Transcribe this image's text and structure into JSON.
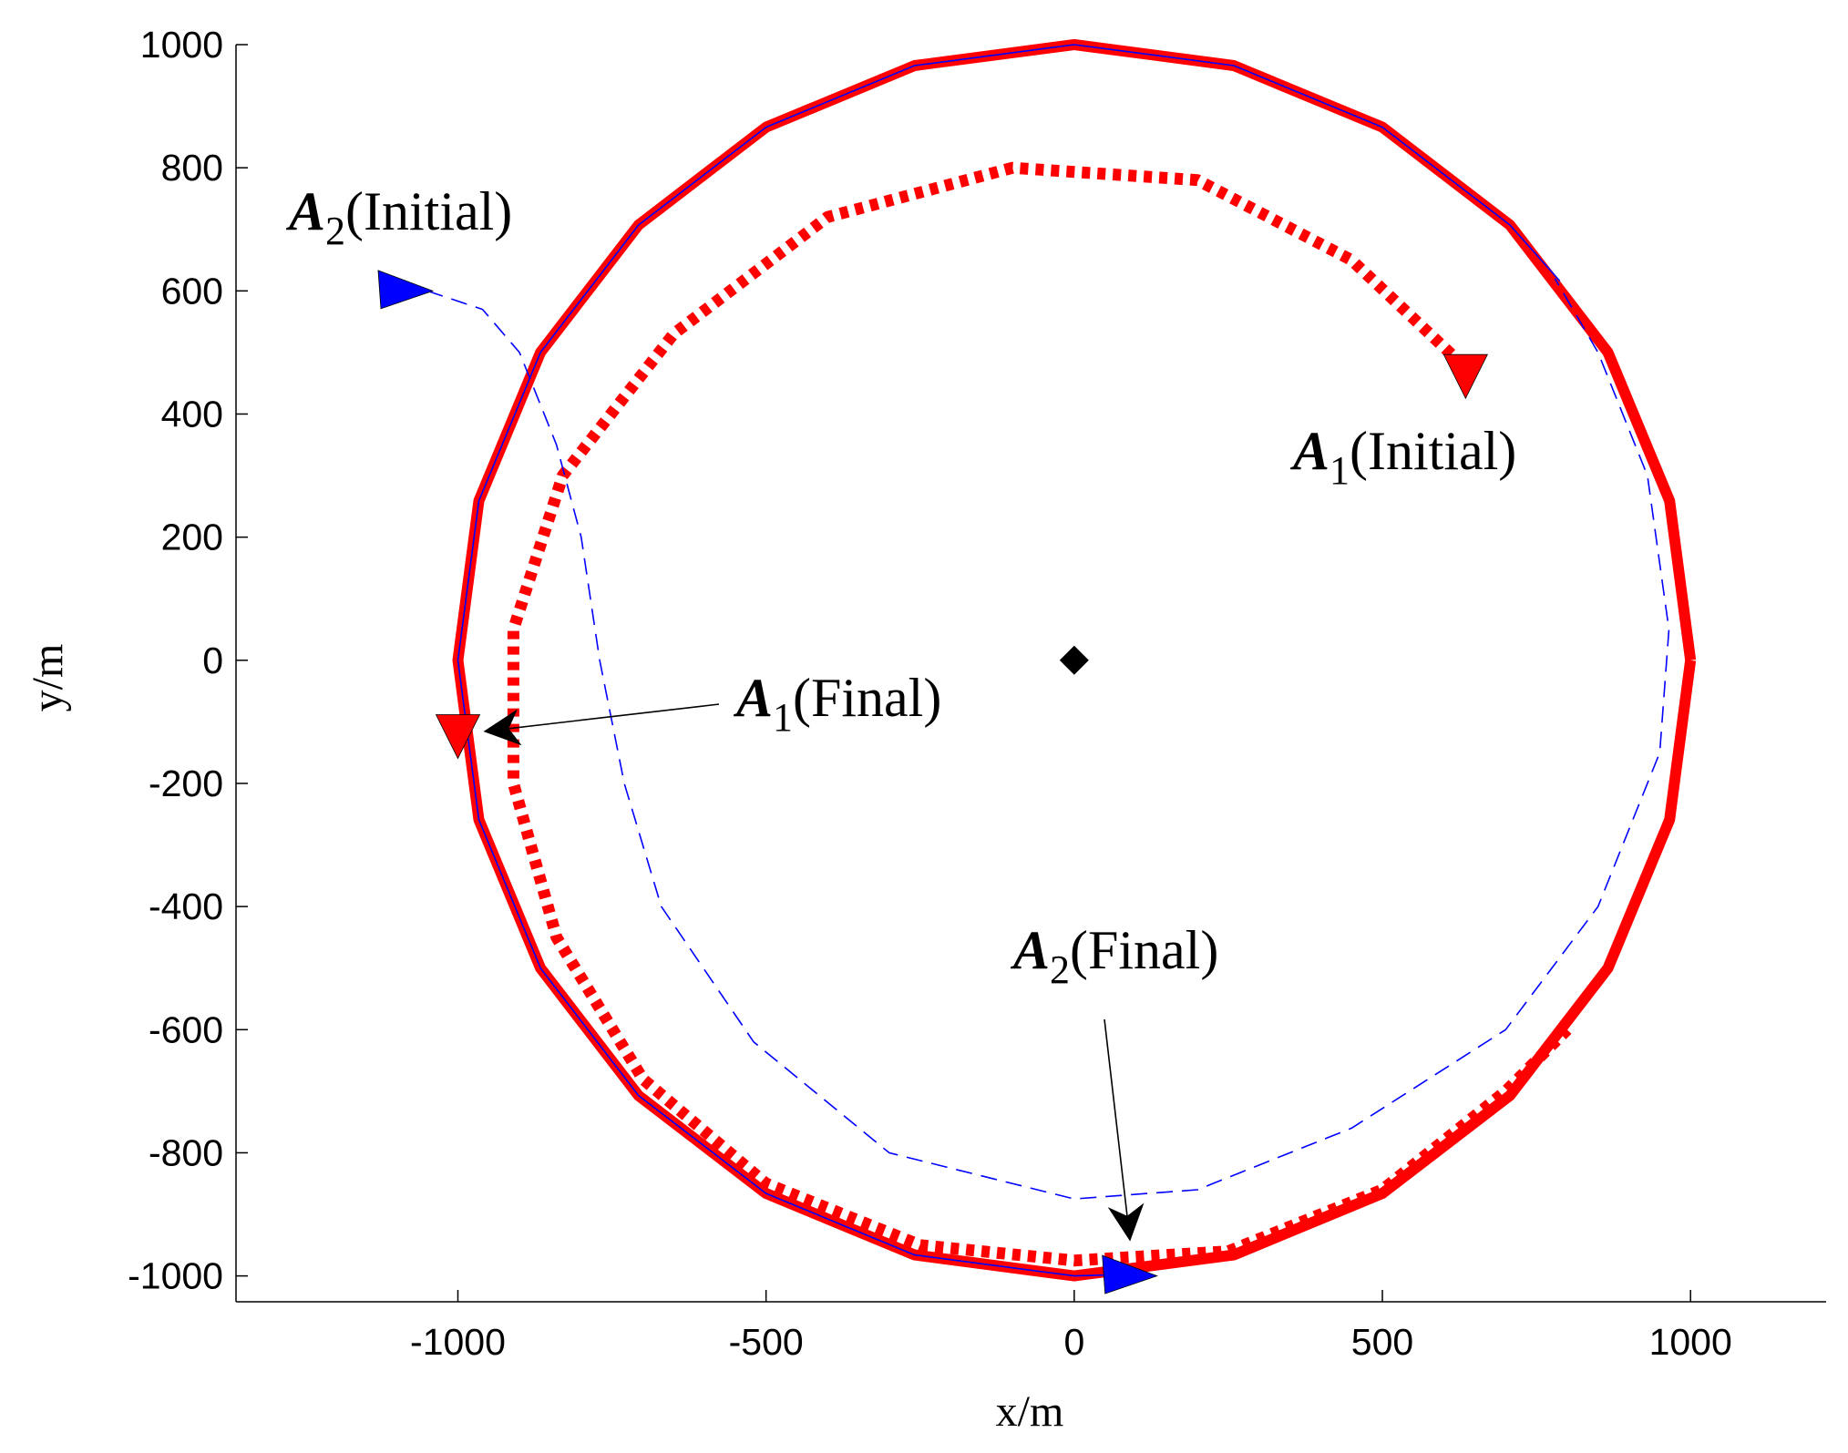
{
  "chart_data": {
    "type": "line",
    "xlabel": "x/m",
    "ylabel": "y/m",
    "xlim": [
      -1360,
      1220
    ],
    "ylim": [
      -1042,
      1000
    ],
    "xticks": [
      -1000,
      -500,
      0,
      500,
      1000
    ],
    "yticks": [
      -1000,
      -800,
      -600,
      -400,
      -200,
      0,
      200,
      400,
      600,
      800,
      1000
    ],
    "series": [
      {
        "color": "#ff0000",
        "style": "solid",
        "weight": "heavy",
        "x": [
          1000,
          966,
          866,
          707,
          500,
          259,
          0,
          -259,
          -500,
          -707,
          -866,
          -966,
          -1000,
          -966,
          -866,
          -707,
          -500,
          -259,
          0,
          259,
          500,
          707,
          866,
          966,
          1000
        ],
        "values": [
          0,
          259,
          500,
          707,
          866,
          966,
          1000,
          966,
          866,
          707,
          500,
          259,
          0,
          -259,
          -500,
          -707,
          -866,
          -966,
          -1000,
          -966,
          -866,
          -707,
          -500,
          -259,
          0
        ]
      },
      {
        "color": "#ff0000",
        "style": "dotted",
        "weight": "heavy",
        "x": [
          630,
          450,
          200,
          -100,
          -400,
          -650,
          -830,
          -910,
          -910,
          -840,
          -700,
          -500,
          -250,
          0,
          250,
          500,
          700,
          800
        ],
        "values": [
          480,
          650,
          780,
          800,
          720,
          530,
          300,
          50,
          -200,
          -450,
          -680,
          -850,
          -950,
          -975,
          -960,
          -860,
          -700,
          -600
        ]
      },
      {
        "color": "#0000ff",
        "style": "dashed",
        "weight": "light",
        "x": [
          -1050,
          -960,
          -900,
          -840,
          -800,
          -770,
          -730,
          -670,
          -520,
          -300,
          0,
          200,
          450,
          700,
          850,
          950,
          965,
          930,
          850,
          780
        ],
        "values": [
          600,
          570,
          500,
          350,
          200,
          0,
          -200,
          -400,
          -620,
          -800,
          -875,
          -860,
          -760,
          -600,
          -400,
          -150,
          50,
          300,
          500,
          620
        ]
      },
      {
        "color": "#0000ff",
        "style": "solid",
        "weight": "light",
        "x": [
          788,
          707,
          500,
          259,
          0,
          -259,
          -500,
          -707,
          -866,
          -966,
          -1000,
          -966,
          -866,
          -707,
          -500,
          -259,
          0,
          70
        ],
        "values": [
          616,
          707,
          866,
          966,
          1000,
          966,
          866,
          707,
          500,
          259,
          0,
          -259,
          -500,
          -707,
          -866,
          -966,
          -1000,
          -998
        ]
      }
    ],
    "markers": [
      {
        "x": -1085,
        "y": 600,
        "color": "#0000ff",
        "direction": "right",
        "arrow": false,
        "label": {
          "main": "A",
          "sub": "2",
          "rest": "(Initial)"
        }
      },
      {
        "x": 635,
        "y": 470,
        "color": "#ff0000",
        "direction": "down",
        "arrow": false,
        "label": {
          "main": "A",
          "sub": "1",
          "rest": "(Initial)"
        }
      },
      {
        "x": -1000,
        "y": -115,
        "color": "#ff0000",
        "direction": "down",
        "arrow": true,
        "label": {
          "main": "A",
          "sub": "1",
          "rest": "(Final)"
        }
      },
      {
        "x": 90,
        "y": -1000,
        "color": "#0000ff",
        "direction": "right",
        "arrow": true,
        "label": {
          "main": "A",
          "sub": "2",
          "rest": "(Final)"
        }
      }
    ],
    "center": {
      "x": 0,
      "y": 0,
      "color": "#000000"
    }
  }
}
